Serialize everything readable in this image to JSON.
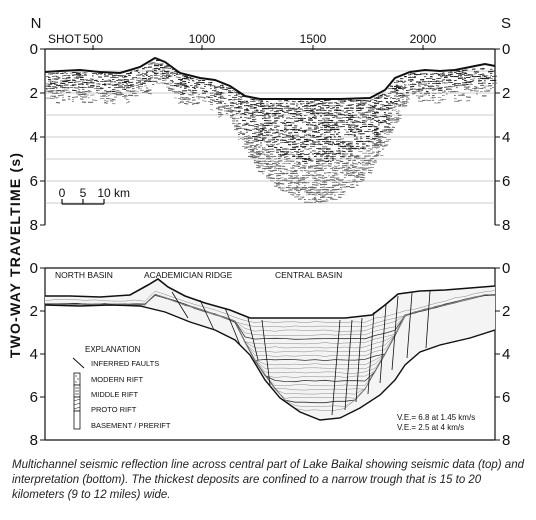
{
  "top_panel": {
    "north_label": "N",
    "south_label": "S",
    "shot_label": "SHOT",
    "shot_ticks": [
      "500",
      "1000",
      "1500",
      "2000"
    ],
    "left_axis_ticks": [
      "0",
      "2",
      "4",
      "6",
      "8"
    ],
    "right_axis_ticks": [
      "0",
      "2",
      "4",
      "6",
      "8"
    ],
    "scale_bar": {
      "labels": [
        "0",
        "5",
        "10"
      ],
      "unit": "km"
    }
  },
  "axis_title": "TWO-WAY TRAVELTIME (s)",
  "bottom_panel": {
    "left_axis_ticks": [
      "0",
      "2",
      "4",
      "6",
      "8"
    ],
    "right_axis_ticks": [
      "0",
      "2",
      "4",
      "6",
      "8"
    ],
    "section_labels": {
      "north_basin": "NORTH BASIN",
      "academician_ridge": "ACADEMICIAN RIDGE",
      "central_basin": "CENTRAL BASIN"
    },
    "explanation": {
      "title": "EXPLANATION",
      "items": [
        {
          "label": "INFERRED FAULTS",
          "symbol": "fault-line"
        },
        {
          "label": "MODERN RIFT",
          "symbol": "stipple-box"
        },
        {
          "label": "MIDDLE RIFT",
          "symbol": "dash-box"
        },
        {
          "label": "PROTO RIFT",
          "symbol": "hatch-box"
        },
        {
          "label": "BASEMENT / PRERIFT",
          "symbol": "basement-box"
        }
      ]
    },
    "ve_notes": [
      "V.E.= 6.8 at 1.45 km/s",
      "V.E.= 2.5 at 4 km/s"
    ]
  },
  "caption": "Multichannel seismic reflection line across central part of Lake Baikal showing seismic data (top) and interpretation (bottom). The thickest deposits are confined to a narrow trough that is 15 to 20 kilometers (9 to 12 miles) wide."
}
